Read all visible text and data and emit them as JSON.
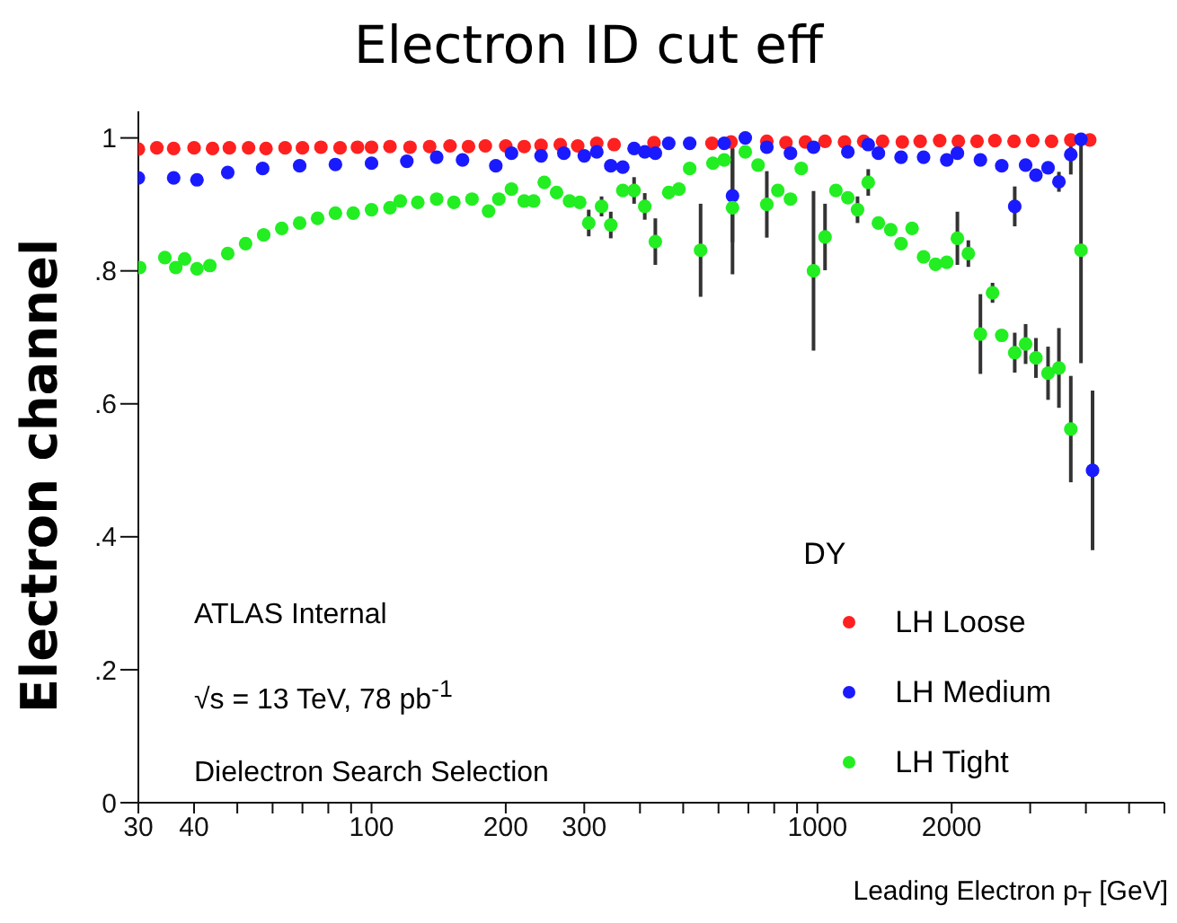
{
  "chart_data": {
    "type": "scatter",
    "title": "Electron ID cut eff",
    "xlabel": "Leading Electron p$_{T}$ [GeV]",
    "ylabel": "Electron channel",
    "legend_title": "DY",
    "annotations": [
      "ATLAS Internal",
      "√s = 13 TeV, 78 pb$^{-1}$",
      "Dielectron Search Selection"
    ],
    "log": "x",
    "xlim": [
      30,
      6000
    ],
    "ylim": [
      0,
      1.04
    ],
    "xticks": [
      30,
      40,
      {
        "value": 50,
        "label": null
      },
      {
        "value": 60,
        "label": null
      },
      {
        "value": 70,
        "label": null
      },
      {
        "value": 80,
        "label": null
      },
      {
        "value": 90,
        "label": null
      },
      100,
      200,
      300,
      {
        "value": 400,
        "label": null
      },
      {
        "value": 500,
        "label": null
      },
      {
        "value": 600,
        "label": null
      },
      {
        "value": 700,
        "label": null
      },
      {
        "value": 800,
        "label": null
      },
      {
        "value": 900,
        "label": null
      },
      1000,
      2000,
      {
        "value": 3000,
        "label": null
      },
      {
        "value": 4000,
        "label": null
      },
      {
        "value": 5000,
        "label": null
      },
      {
        "value": 6000,
        "label": null
      }
    ],
    "yticks": [
      0,
      {
        "value": 0.2,
        "label": ".2"
      },
      {
        "value": 0.4,
        "label": ".4"
      },
      {
        "value": 0.6,
        "label": ".6"
      },
      {
        "value": 0.8,
        "label": ".8"
      },
      1
    ],
    "grid": false,
    "legend": "bottom right",
    "marker": "circle",
    "series": [
      {
        "name": "LH Loose",
        "color": "#ff2020",
        "x": [
          30,
          33,
          36,
          40,
          44,
          48,
          53,
          58,
          64,
          70,
          77,
          85,
          93,
          100,
          110,
          122,
          135,
          150,
          165,
          180,
          200,
          220,
          240,
          265,
          290,
          320,
          350,
          390,
          430,
          470,
          520,
          580,
          640,
          700,
          770,
          850,
          940,
          1040,
          1150,
          1270,
          1400,
          1550,
          1700,
          1880,
          2070,
          2280,
          2500,
          2760,
          3040,
          3350,
          3700,
          4080
        ],
        "values": [
          0.983,
          0.985,
          0.984,
          0.985,
          0.984,
          0.985,
          0.985,
          0.984,
          0.985,
          0.985,
          0.986,
          0.985,
          0.986,
          0.986,
          0.987,
          0.986,
          0.987,
          0.988,
          0.987,
          0.988,
          0.988,
          0.987,
          0.989,
          0.99,
          0.988,
          0.992,
          0.99,
          null,
          0.993,
          null,
          null,
          0.992,
          0.994,
          null,
          0.995,
          0.993,
          0.994,
          0.995,
          0.994,
          0.995,
          0.995,
          0.994,
          0.995,
          0.996,
          0.995,
          0.995,
          0.996,
          0.995,
          0.996,
          0.995,
          0.997,
          0.997
        ]
      },
      {
        "name": "LH Medium",
        "color": "#1a1aff",
        "x": [
          30,
          36,
          40.6,
          47.6,
          57,
          69,
          83,
          100,
          120,
          140,
          160,
          190,
          206,
          240,
          270,
          300,
          320,
          344,
          366,
          388,
          410,
          433,
          464,
          517,
          618,
          645,
          689,
          770,
          870,
          980,
          1170,
          1300,
          1370,
          1540,
          1730,
          1950,
          2060,
          2320,
          2590,
          2770,
          2930,
          3090,
          3290,
          3480,
          3700,
          3900,
          4140
        ],
        "values": [
          0.94,
          0.94,
          0.937,
          0.948,
          0.954,
          0.958,
          0.96,
          0.962,
          0.965,
          0.971,
          0.967,
          0.958,
          0.977,
          0.973,
          0.977,
          0.973,
          0.979,
          0.958,
          0.956,
          0.984,
          0.979,
          0.977,
          0.992,
          0.992,
          0.992,
          0.913,
          1.0,
          0.986,
          0.977,
          0.986,
          0.979,
          0.99,
          0.977,
          0.971,
          0.971,
          0.967,
          0.977,
          0.967,
          0.958,
          0.897,
          0.959,
          0.944,
          0.955,
          0.934,
          0.975,
          0.998,
          0.5
        ],
        "errors": [
          null,
          null,
          null,
          null,
          null,
          null,
          null,
          null,
          null,
          null,
          null,
          null,
          null,
          null,
          null,
          null,
          null,
          null,
          null,
          null,
          null,
          null,
          null,
          null,
          null,
          0.07,
          null,
          null,
          null,
          null,
          null,
          null,
          null,
          null,
          null,
          null,
          null,
          null,
          null,
          0.03,
          null,
          null,
          null,
          0.015,
          0.03,
          null,
          0.12
        ]
      },
      {
        "name": "LH Tight",
        "color": "#22ee22",
        "x": [
          30.2,
          34.4,
          36.4,
          38.1,
          40.6,
          43.4,
          47.6,
          52.2,
          57.3,
          62.9,
          69,
          75.7,
          83,
          91,
          100,
          110,
          116,
          127,
          140,
          153,
          168,
          183,
          193,
          206,
          220,
          231,
          244,
          260,
          278,
          293,
          307,
          328,
          344,
          366,
          388,
          410,
          433,
          464,
          489,
          517,
          547,
          583,
          618,
          645,
          689,
          736,
          770,
          815,
          870,
          920,
          980,
          1040,
          1100,
          1170,
          1230,
          1300,
          1370,
          1460,
          1540,
          1630,
          1730,
          1840,
          1950,
          2060,
          2180,
          2320,
          2470,
          2590,
          2770,
          2930,
          3090,
          3290,
          3480,
          3700,
          3900
        ],
        "values": [
          0.805,
          0.82,
          0.805,
          0.818,
          0.803,
          0.808,
          0.826,
          0.841,
          0.854,
          0.864,
          0.872,
          0.879,
          0.887,
          0.887,
          0.892,
          0.895,
          0.905,
          0.903,
          0.908,
          0.903,
          0.908,
          0.89,
          0.908,
          0.923,
          0.905,
          0.905,
          0.933,
          0.918,
          0.905,
          0.903,
          0.872,
          0.897,
          0.869,
          0.921,
          0.921,
          0.897,
          0.844,
          0.918,
          0.923,
          0.954,
          0.831,
          0.962,
          0.967,
          0.895,
          0.979,
          0.959,
          0.9,
          0.921,
          0.908,
          0.954,
          0.8,
          0.851,
          0.921,
          0.91,
          0.892,
          0.933,
          0.872,
          0.862,
          0.841,
          0.864,
          0.821,
          0.81,
          0.813,
          0.849,
          0.826,
          0.705,
          0.767,
          0.703,
          0.677,
          0.69,
          0.669,
          0.646,
          0.654,
          0.562,
          0.831
        ],
        "errors": [
          null,
          null,
          null,
          null,
          null,
          null,
          null,
          null,
          null,
          null,
          null,
          null,
          null,
          null,
          null,
          null,
          null,
          null,
          null,
          null,
          null,
          null,
          null,
          null,
          null,
          null,
          null,
          null,
          null,
          null,
          0.02,
          0.015,
          0.02,
          null,
          0.02,
          0.02,
          0.035,
          null,
          null,
          null,
          0.07,
          null,
          null,
          0.1,
          null,
          null,
          0.05,
          null,
          null,
          null,
          0.12,
          0.05,
          null,
          null,
          0.02,
          0.02,
          null,
          null,
          null,
          null,
          null,
          null,
          null,
          0.04,
          0.02,
          0.06,
          0.015,
          null,
          0.03,
          0.03,
          0.03,
          0.04,
          0.06,
          0.08,
          0.17
        ]
      }
    ]
  }
}
